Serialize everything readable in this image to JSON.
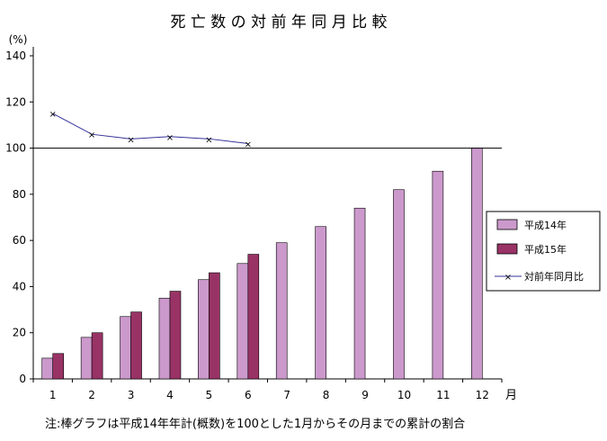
{
  "chart_data": {
    "type": "bar",
    "title": "死 亡 数 の 対 前 年 同 月 比 較",
    "y_unit_label": "(%)",
    "x_unit_label": "月",
    "note": "注:棒グラフは平成14年年計(概数)を100とした1月からその月までの累計の割合",
    "categories": [
      "1",
      "2",
      "3",
      "4",
      "5",
      "6",
      "7",
      "8",
      "9",
      "10",
      "11",
      "12"
    ],
    "ylim": [
      0,
      140
    ],
    "yticks": [
      0,
      20,
      40,
      60,
      80,
      100,
      120,
      140
    ],
    "reference_line": 100,
    "series": [
      {
        "name": "平成14年",
        "kind": "bar",
        "color": "#cc99cc",
        "values": [
          9,
          18,
          27,
          35,
          43,
          50,
          59,
          66,
          74,
          82,
          90,
          100
        ]
      },
      {
        "name": "平成15年",
        "kind": "bar",
        "color": "#993366",
        "values": [
          11,
          20,
          29,
          38,
          46,
          54,
          null,
          null,
          null,
          null,
          null,
          null
        ]
      },
      {
        "name": "対前年同月比",
        "kind": "line",
        "color": "#333399",
        "values": [
          115,
          106,
          104,
          105,
          104,
          102,
          null,
          null,
          null,
          null,
          null,
          null
        ]
      }
    ],
    "legend_position": "right"
  }
}
